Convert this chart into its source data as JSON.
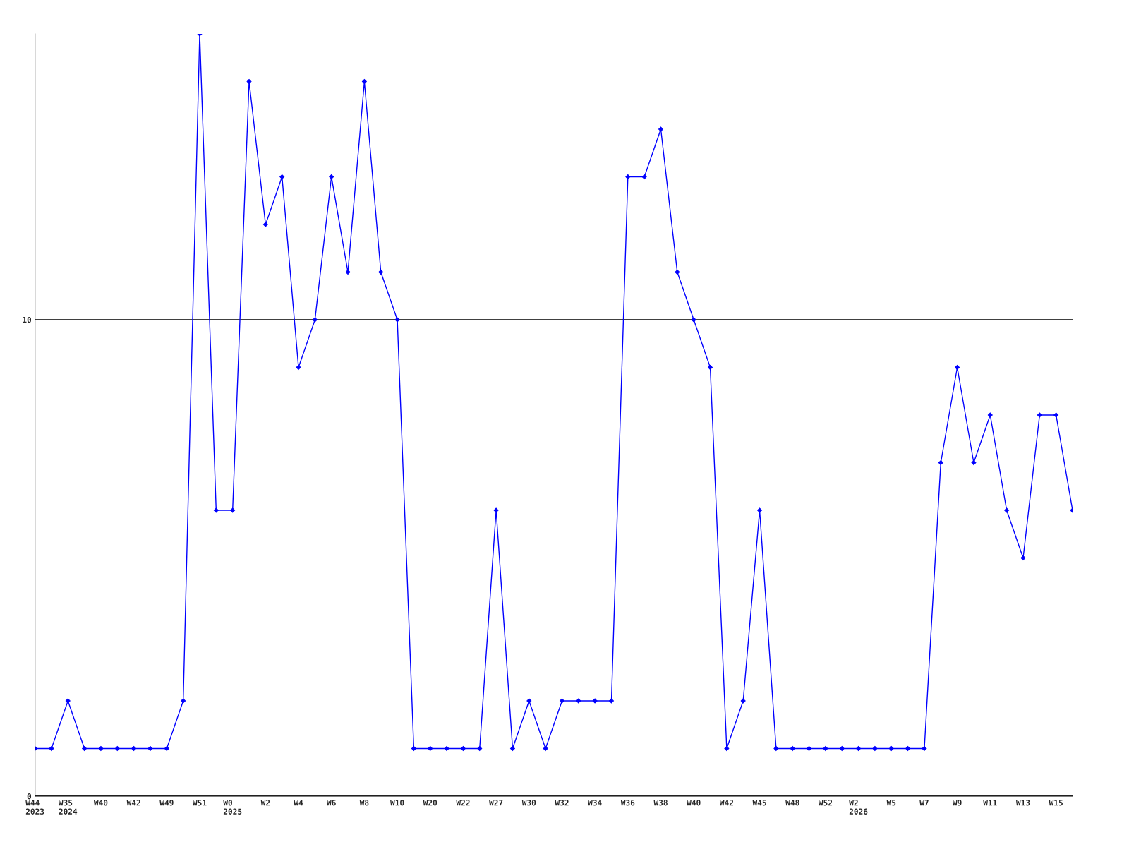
{
  "chart_data": {
    "type": "line",
    "categories": [
      "W44\n2023",
      null,
      "W35\n2024",
      null,
      "W40",
      null,
      "W42",
      null,
      "W49",
      null,
      "W51",
      null,
      "W0\n2025",
      null,
      "W2",
      null,
      "W4",
      null,
      "W6",
      null,
      "W8",
      null,
      "W10",
      null,
      "W20",
      null,
      "W22",
      null,
      "W27",
      null,
      "W30",
      null,
      "W32",
      null,
      "W34",
      null,
      "W36",
      null,
      "W38",
      null,
      "W40",
      null,
      "W42",
      null,
      "W45",
      null,
      "W48",
      null,
      "W52",
      null,
      "W2\n2026",
      null,
      "W5",
      null,
      "W7",
      null,
      "W9",
      null,
      "W11",
      null,
      "W13",
      null,
      "W15",
      null
    ],
    "series": [
      {
        "color": "#0000ff",
        "values": [
          1,
          1,
          2,
          1,
          1,
          1,
          1,
          1,
          1,
          2,
          16,
          6,
          6,
          15,
          12,
          13,
          9,
          10,
          13,
          11,
          15,
          11,
          10,
          1,
          1,
          1,
          1,
          1,
          6,
          1,
          2,
          1,
          2,
          2,
          2,
          2,
          13,
          13,
          14,
          11,
          10,
          9,
          1,
          2,
          6,
          1,
          1,
          1,
          1,
          1,
          1,
          1,
          1,
          1,
          1,
          7,
          9,
          7,
          8,
          6,
          5,
          8,
          8,
          6
        ]
      }
    ],
    "ylim": [
      0,
      16
    ],
    "yticks": [
      0,
      10
    ],
    "grid": "y",
    "marker": "diamond",
    "line_style": "solid",
    "legend": false
  }
}
